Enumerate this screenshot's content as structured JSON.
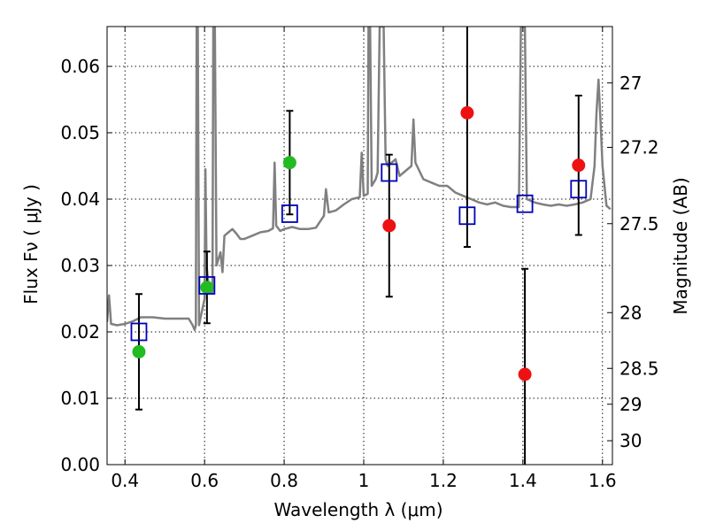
{
  "chart_data": {
    "type": "scatter",
    "xlabel": "Wavelength  λ (μm)",
    "ylabel": "Flux  Fν  ( μJy )",
    "ylabel_right": "Magnitude (AB)",
    "xlim": [
      0.355,
      1.625
    ],
    "ylim": [
      0.0,
      0.066
    ],
    "x_ticks": [
      0.4,
      0.6,
      0.8,
      1.0,
      1.2,
      1.4,
      1.6
    ],
    "x_tick_labels": [
      "0.4",
      "0.6",
      "0.8",
      "1",
      "1.2",
      "1.4",
      "1.6"
    ],
    "y_ticks": [
      0.0,
      0.01,
      0.02,
      0.03,
      0.04,
      0.05,
      0.06
    ],
    "y_tick_labels": [
      "0.00",
      "0.01",
      "0.02",
      "0.03",
      "0.04",
      "0.05",
      "0.06"
    ],
    "magnitude_ticks": [
      {
        "label": "27",
        "flux": 0.0575
      },
      {
        "label": "27.2",
        "flux": 0.0478
      },
      {
        "label": "27.5",
        "flux": 0.0363
      },
      {
        "label": "28",
        "flux": 0.0229
      },
      {
        "label": "28.5",
        "flux": 0.0145
      },
      {
        "label": "29",
        "flux": 0.0091
      },
      {
        "label": "30",
        "flux": 0.0036
      }
    ],
    "grid": true,
    "colors": {
      "model": "#808080",
      "green": "#22bb22",
      "red": "#ee1111",
      "blue": "#0000bb",
      "errorbar": "#000000"
    },
    "series": [
      {
        "marker": "circle",
        "color": "#22bb22",
        "points": [
          {
            "x": 0.435,
            "y": 0.017,
            "err": 0.0087
          },
          {
            "x": 0.606,
            "y": 0.0267,
            "err": 0.0054
          },
          {
            "x": 0.814,
            "y": 0.0455,
            "err": 0.0078
          }
        ]
      },
      {
        "marker": "circle",
        "color": "#ee1111",
        "points": [
          {
            "x": 1.064,
            "y": 0.036,
            "err": 0.0107
          },
          {
            "x": 1.26,
            "y": 0.053,
            "err": 0.0202
          },
          {
            "x": 1.405,
            "y": 0.0136,
            "err": 0.0159
          },
          {
            "x": 1.54,
            "y": 0.0451,
            "err": 0.0105
          }
        ]
      },
      {
        "marker": "square",
        "color": "#0000bb",
        "points": [
          {
            "x": 0.435,
            "y": 0.02
          },
          {
            "x": 0.606,
            "y": 0.027
          },
          {
            "x": 0.814,
            "y": 0.0378
          },
          {
            "x": 1.064,
            "y": 0.044
          },
          {
            "x": 1.26,
            "y": 0.0375
          },
          {
            "x": 1.405,
            "y": 0.0393
          },
          {
            "x": 1.54,
            "y": 0.0415
          }
        ]
      }
    ],
    "model_spectrum": [
      [
        0.355,
        0.0215
      ],
      [
        0.36,
        0.0255
      ],
      [
        0.365,
        0.0212
      ],
      [
        0.38,
        0.021
      ],
      [
        0.4,
        0.0212
      ],
      [
        0.42,
        0.0216
      ],
      [
        0.44,
        0.0222
      ],
      [
        0.47,
        0.0222
      ],
      [
        0.5,
        0.022
      ],
      [
        0.53,
        0.022
      ],
      [
        0.56,
        0.022
      ],
      [
        0.57,
        0.021
      ],
      [
        0.575,
        0.0203
      ],
      [
        0.578,
        0.021
      ],
      [
        0.58,
        0.066
      ],
      [
        0.583,
        0.066
      ],
      [
        0.586,
        0.021
      ],
      [
        0.59,
        0.0222
      ],
      [
        0.6,
        0.025
      ],
      [
        0.602,
        0.0445
      ],
      [
        0.605,
        0.03
      ],
      [
        0.612,
        0.026
      ],
      [
        0.62,
        0.026
      ],
      [
        0.622,
        0.066
      ],
      [
        0.626,
        0.066
      ],
      [
        0.63,
        0.03
      ],
      [
        0.64,
        0.032
      ],
      [
        0.645,
        0.029
      ],
      [
        0.65,
        0.0345
      ],
      [
        0.66,
        0.035
      ],
      [
        0.67,
        0.0355
      ],
      [
        0.68,
        0.0348
      ],
      [
        0.69,
        0.034
      ],
      [
        0.7,
        0.034
      ],
      [
        0.72,
        0.0345
      ],
      [
        0.74,
        0.035
      ],
      [
        0.76,
        0.0352
      ],
      [
        0.772,
        0.0356
      ],
      [
        0.776,
        0.0455
      ],
      [
        0.78,
        0.036
      ],
      [
        0.79,
        0.0352
      ],
      [
        0.8,
        0.0355
      ],
      [
        0.82,
        0.0358
      ],
      [
        0.84,
        0.0355
      ],
      [
        0.86,
        0.0355
      ],
      [
        0.88,
        0.0357
      ],
      [
        0.9,
        0.0375
      ],
      [
        0.905,
        0.0415
      ],
      [
        0.912,
        0.038
      ],
      [
        0.93,
        0.0383
      ],
      [
        0.95,
        0.0392
      ],
      [
        0.97,
        0.04
      ],
      [
        0.99,
        0.0403
      ],
      [
        0.995,
        0.047
      ],
      [
        1.0,
        0.0405
      ],
      [
        1.01,
        0.0408
      ],
      [
        1.012,
        0.066
      ],
      [
        1.016,
        0.066
      ],
      [
        1.02,
        0.042
      ],
      [
        1.03,
        0.043
      ],
      [
        1.035,
        0.044
      ],
      [
        1.04,
        0.066
      ],
      [
        1.045,
        0.066
      ],
      [
        1.05,
        0.066
      ],
      [
        1.055,
        0.046
      ],
      [
        1.06,
        0.045
      ],
      [
        1.08,
        0.046
      ],
      [
        1.09,
        0.0435
      ],
      [
        1.1,
        0.044
      ],
      [
        1.12,
        0.045
      ],
      [
        1.125,
        0.052
      ],
      [
        1.13,
        0.0455
      ],
      [
        1.15,
        0.043
      ],
      [
        1.17,
        0.0425
      ],
      [
        1.19,
        0.042
      ],
      [
        1.21,
        0.042
      ],
      [
        1.23,
        0.041
      ],
      [
        1.25,
        0.0405
      ],
      [
        1.27,
        0.04
      ],
      [
        1.29,
        0.0395
      ],
      [
        1.31,
        0.0392
      ],
      [
        1.33,
        0.0395
      ],
      [
        1.35,
        0.039
      ],
      [
        1.37,
        0.0388
      ],
      [
        1.39,
        0.0388
      ],
      [
        1.395,
        0.066
      ],
      [
        1.405,
        0.066
      ],
      [
        1.41,
        0.04
      ],
      [
        1.43,
        0.0395
      ],
      [
        1.45,
        0.0392
      ],
      [
        1.47,
        0.039
      ],
      [
        1.49,
        0.0392
      ],
      [
        1.51,
        0.039
      ],
      [
        1.53,
        0.0392
      ],
      [
        1.55,
        0.0395
      ],
      [
        1.57,
        0.04
      ],
      [
        1.58,
        0.045
      ],
      [
        1.585,
        0.053
      ],
      [
        1.59,
        0.058
      ],
      [
        1.595,
        0.052
      ],
      [
        1.6,
        0.045
      ],
      [
        1.61,
        0.039
      ],
      [
        1.62,
        0.0385
      ]
    ]
  }
}
